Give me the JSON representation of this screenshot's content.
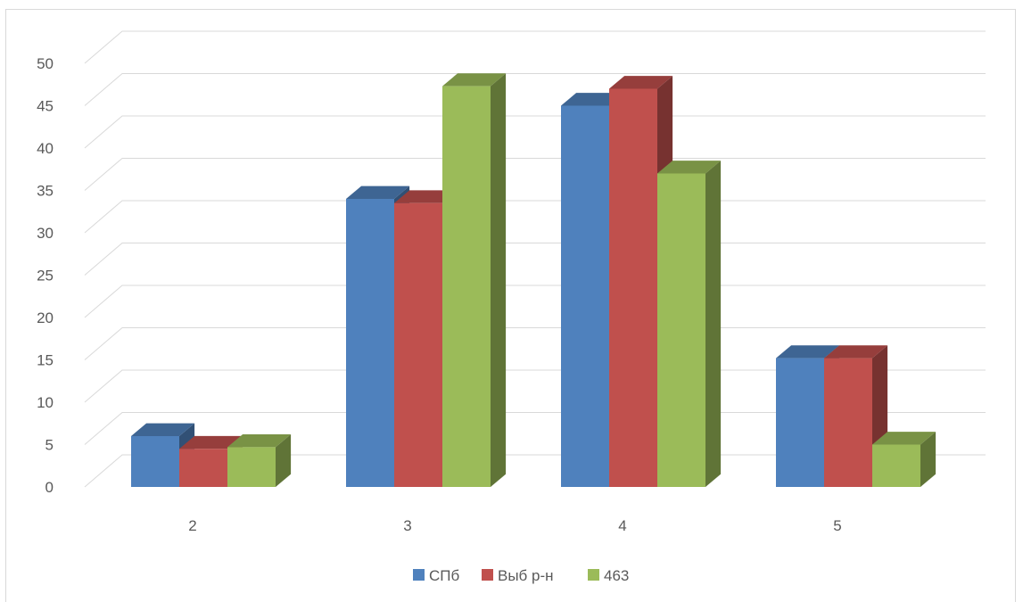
{
  "chart_data": {
    "type": "bar",
    "title": "",
    "xlabel": "",
    "ylabel": "",
    "categories": [
      "2",
      "3",
      "4",
      "5"
    ],
    "series": [
      {
        "name": "СПб",
        "values": [
          6,
          34,
          45,
          15.2
        ]
      },
      {
        "name": "Выб р-н",
        "values": [
          4.5,
          33.5,
          47,
          15.2
        ]
      },
      {
        "name": "463",
        "values": [
          4.7,
          47.3,
          37,
          5
        ]
      }
    ],
    "ylim": [
      0,
      50
    ],
    "yticks": [
      "0",
      "5",
      "10",
      "15",
      "20",
      "25",
      "30",
      "35",
      "40",
      "45",
      "50"
    ],
    "grid": true,
    "legend_position": "bottom",
    "colors": [
      "#4f81bd",
      "#c0504d",
      "#9bbb59"
    ]
  }
}
